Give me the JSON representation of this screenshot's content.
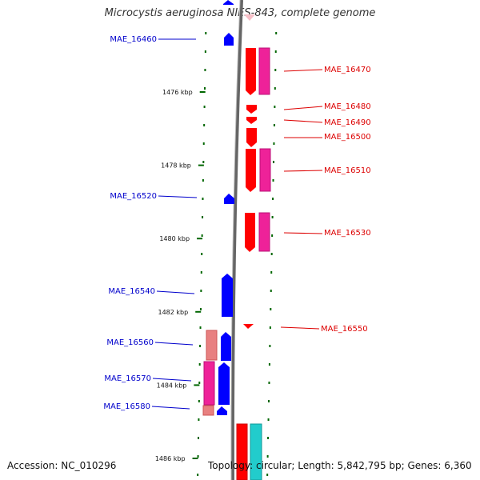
{
  "header": {
    "title": "Microcystis aeruginosa NIES-843, complete genome"
  },
  "footer": {
    "accession": "Accession: NC_010296",
    "topology": "Topology: circular; Length: 5,842,795 bp; Genes: 6,360"
  },
  "axis": {
    "ticks": [
      {
        "kbp": 1476,
        "label": "1476 kbp"
      },
      {
        "kbp": 1478,
        "label": "1478 kbp"
      },
      {
        "kbp": 1480,
        "label": "1480 kbp"
      },
      {
        "kbp": 1482,
        "label": "1482 kbp"
      },
      {
        "kbp": 1484,
        "label": "1484 kbp"
      },
      {
        "kbp": 1486,
        "label": "1486 kbp"
      }
    ]
  },
  "genes": {
    "left": [
      {
        "label": "MAE_16460",
        "color": "#0000cc"
      },
      {
        "label": "MAE_16520",
        "color": "#0000cc"
      },
      {
        "label": "MAE_16540",
        "color": "#0000cc"
      },
      {
        "label": "MAE_16560",
        "color": "#0000cc"
      },
      {
        "label": "MAE_16570",
        "color": "#0000cc"
      },
      {
        "label": "MAE_16580",
        "color": "#0000cc"
      }
    ],
    "right": [
      {
        "label": "MAE_16470",
        "color": "#dd0000"
      },
      {
        "label": "MAE_16480",
        "color": "#dd0000"
      },
      {
        "label": "MAE_16490",
        "color": "#dd0000"
      },
      {
        "label": "MAE_16500",
        "color": "#dd0000"
      },
      {
        "label": "MAE_16510",
        "color": "#dd0000"
      },
      {
        "label": "MAE_16530",
        "color": "#dd0000"
      },
      {
        "label": "MAE_16550",
        "color": "#dd0000"
      }
    ]
  },
  "colors": {
    "forward_cds": "#ff0000",
    "forward_gene": "#ee2299",
    "reverse_cds": "#0000ff",
    "reverse_gene_pink": "#ee2299",
    "reverse_gene_salmon": "#dd7777",
    "rna": "#22cccc",
    "backbone": "#888888",
    "tick": "#006600"
  }
}
